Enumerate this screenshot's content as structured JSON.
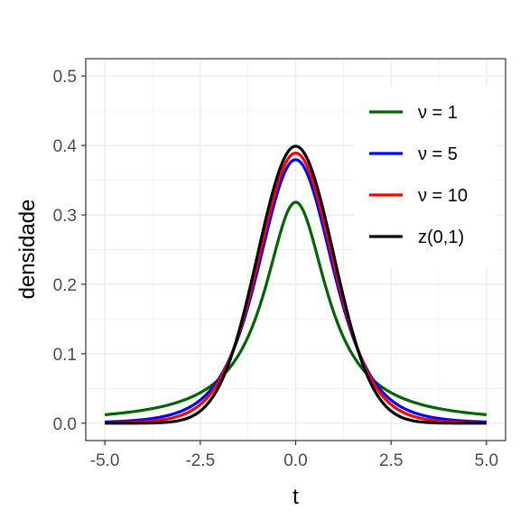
{
  "chart_data": {
    "type": "line",
    "xlabel": "t",
    "ylabel": "densidade",
    "xlim": [
      -5.5,
      5.5
    ],
    "ylim": [
      -0.025,
      0.525
    ],
    "x_ticks": [
      -5.0,
      -2.5,
      0.0,
      2.5,
      5.0
    ],
    "x_tick_labels": [
      "-5.0",
      "-2.5",
      "0.0",
      "2.5",
      "5.0"
    ],
    "y_ticks": [
      0.0,
      0.1,
      0.2,
      0.3,
      0.4,
      0.5
    ],
    "y_tick_labels": [
      "0.0",
      "0.1",
      "0.2",
      "0.3",
      "0.4",
      "0.5"
    ],
    "grid": true,
    "legend_position": "top-right",
    "series": [
      {
        "name": "ν = 1",
        "color": "#006400",
        "dist": "t",
        "df": 1,
        "x": [
          -5,
          -4,
          -3,
          -2,
          -1,
          0,
          1,
          2,
          3,
          4,
          5
        ],
        "values": [
          0.012,
          0.019,
          0.032,
          0.064,
          0.159,
          0.318,
          0.159,
          0.064,
          0.032,
          0.019,
          0.012
        ]
      },
      {
        "name": "ν = 5",
        "color": "#0000ff",
        "dist": "t",
        "df": 5,
        "x": [
          -5,
          -4,
          -3,
          -2,
          -1,
          0,
          1,
          2,
          3,
          4,
          5
        ],
        "values": [
          0.002,
          0.005,
          0.017,
          0.065,
          0.22,
          0.38,
          0.22,
          0.065,
          0.017,
          0.005,
          0.002
        ]
      },
      {
        "name": "ν = 10",
        "color": "#ff0000",
        "dist": "t",
        "df": 10,
        "x": [
          -5,
          -4,
          -3,
          -2,
          -1,
          0,
          1,
          2,
          3,
          4,
          5
        ],
        "values": [
          0.0004,
          0.002,
          0.011,
          0.061,
          0.23,
          0.389,
          0.23,
          0.061,
          0.011,
          0.002,
          0.0004
        ]
      },
      {
        "name": "z(0,1)",
        "color": "#000000",
        "dist": "normal",
        "df": null,
        "x": [
          -5,
          -4,
          -3,
          -2,
          -1,
          0,
          1,
          2,
          3,
          4,
          5
        ],
        "values": [
          0.0,
          0.0001,
          0.004,
          0.054,
          0.242,
          0.399,
          0.242,
          0.054,
          0.004,
          0.0001,
          0.0
        ]
      }
    ]
  }
}
